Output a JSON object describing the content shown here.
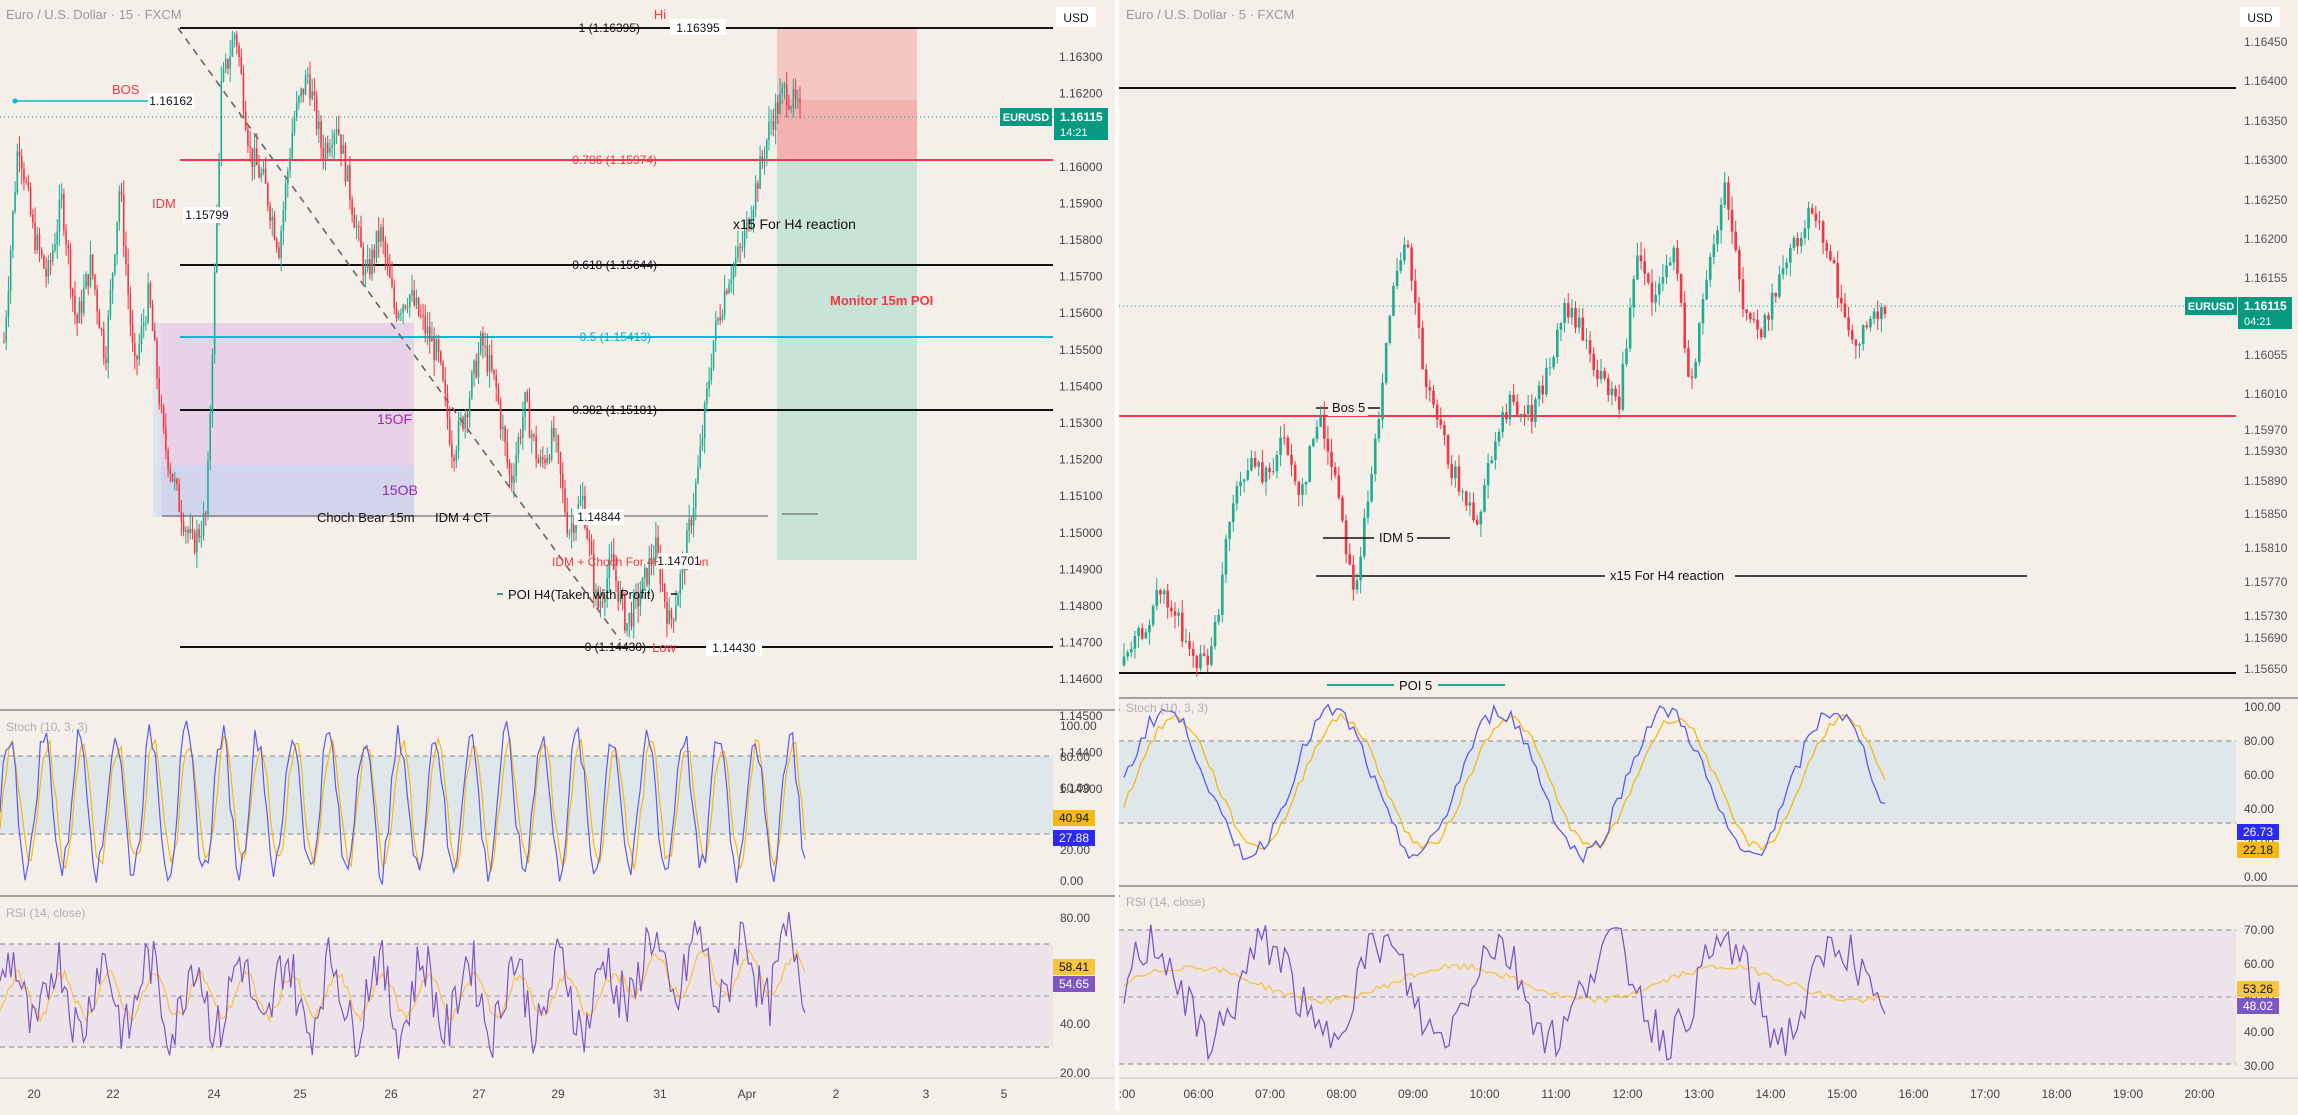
{
  "colors": {
    "bg": "#f4efe8",
    "up": "#22ab94",
    "down": "#f23645",
    "fib_red": "#f23645",
    "fib_blue": "#00bcd4",
    "ob_purple": "#e1bee7",
    "ob_blue": "#c5cae9",
    "stoch_k": "#5b5bf0",
    "stoch_d": "#f5b914",
    "rsi": "#7e57c2",
    "rsi_ma": "#f5c542",
    "price_tag": "#089981"
  },
  "left": {
    "title": "Euro / U.S. Dollar · 15 · FXCM",
    "currency": "USD",
    "price_axis": [
      "1.16300",
      "1.16200",
      "1.16100",
      "1.16000",
      "1.15900",
      "1.15800",
      "1.15700",
      "1.15600",
      "1.15500",
      "1.15400",
      "1.15300",
      "1.15200",
      "1.15100",
      "1.15000",
      "1.14900",
      "1.14800",
      "1.14700",
      "1.14600",
      "1.14500",
      "1.14400",
      "1.14300"
    ],
    "symbol_tag": "EURUSD",
    "price_tag": "1.16115",
    "countdown": "14:21",
    "x_labels": [
      "20",
      "22",
      "24",
      "25",
      "26",
      "27",
      "29",
      "31",
      "Apr",
      "2",
      "3",
      "5"
    ],
    "fib": [
      {
        "label": "1 (1.16395)",
        "value": 1.16395
      },
      {
        "label": "0.786 (1.15974)",
        "value": 1.15974
      },
      {
        "label": "0.618 (1.15644)",
        "value": 1.15644
      },
      {
        "label": "0.5 (1.15413)",
        "value": 1.15413
      },
      {
        "label": "0.382 (1.15181)",
        "value": 1.15181
      },
      {
        "label": "0 (1.14430)",
        "value": 1.1443
      }
    ],
    "annotations": {
      "hi": "Hi",
      "hi_price": "1.16395",
      "low": "Low",
      "low_price": "1.14430",
      "bos": "BOS",
      "bos_price": "1.16162",
      "idm": "IDM",
      "idm_price": "1.15799",
      "fifteen_of": "15OF",
      "fifteen_ob": "15OB",
      "choch_bear": "Choch Bear 15m",
      "idm_4ct": "IDM 4 CT",
      "idm_4ct_price": "1.14844",
      "idm_choch_4h": "IDM + Choch For 4H reaction",
      "idm_choch_price": "1.14701",
      "poi_h4": "POI H4(Taken with Profit)",
      "x15": "x15 For H4 reaction",
      "monitor": "Monitor 15m POI"
    },
    "stoch": {
      "label": "Stoch (10, 3, 3)",
      "axis": [
        "100.00",
        "80.00",
        "60.00",
        "40.00",
        "20.00",
        "0.00"
      ],
      "k_value": "40.94",
      "d_value": "27.88"
    },
    "rsi": {
      "label": "RSI (14, close)",
      "axis": [
        "80.00",
        "60.00",
        "40.00",
        "20.00"
      ],
      "value1": "58.41",
      "value2": "54.65"
    }
  },
  "right": {
    "title": "Euro / U.S. Dollar · 5 · FXCM",
    "currency": "USD",
    "price_axis": [
      "1.16450",
      "1.16400",
      "1.16350",
      "1.16300",
      "1.16250",
      "1.16200",
      "1.16155",
      "1.16105",
      "1.16055",
      "1.16010",
      "1.15970",
      "1.15930",
      "1.15890",
      "1.15850",
      "1.15810",
      "1.15770",
      "1.15730",
      "1.15690",
      "1.15650"
    ],
    "symbol_tag": "EURUSD",
    "price_tag": "1.16115",
    "countdown": "04:21",
    "x_labels": [
      ":00",
      "06:00",
      "07:00",
      "08:00",
      "09:00",
      "10:00",
      "11:00",
      "12:00",
      "13:00",
      "14:00",
      "15:00",
      "16:00",
      "17:00",
      "18:00",
      "19:00",
      "20:00"
    ],
    "annotations": {
      "bos5": "Bos 5",
      "idm5": "IDM 5",
      "x15": "x15 For H4 reaction",
      "poi5": "POI 5"
    },
    "stoch": {
      "label": "Stoch (10, 3, 3)",
      "axis": [
        "100.00",
        "80.00",
        "60.00",
        "40.00",
        "20.00",
        "0.00"
      ],
      "k_value": "26.73",
      "d_value": "22.18"
    },
    "rsi": {
      "label": "RSI (14, close)",
      "axis": [
        "70.00",
        "60.00",
        "50.00",
        "40.00",
        "30.00"
      ],
      "value1": "53.26",
      "value2": "48.02"
    }
  },
  "chart_data": [
    {
      "type": "candlestick",
      "title": "Euro / U.S. Dollar · 15 · FXCM",
      "ylim": [
        1.1425,
        1.165
      ],
      "fib_levels": [
        1.16395,
        1.15974,
        1.15644,
        1.15413,
        1.15181,
        1.1443
      ],
      "close": 1.16115,
      "x_ticks": [
        "20",
        "22",
        "24",
        "25",
        "26",
        "27",
        "29",
        "31",
        "Apr",
        "2",
        "3",
        "5"
      ]
    },
    {
      "type": "candlestick",
      "title": "Euro / U.S. Dollar · 5 · FXCM",
      "ylim": [
        1.1562,
        1.165
      ],
      "close": 1.16115,
      "x_ticks": [
        ":00",
        "06:00",
        "07:00",
        "08:00",
        "09:00",
        "10:00",
        "11:00",
        "12:00",
        "13:00",
        "14:00",
        "15:00",
        "16:00",
        "17:00",
        "18:00",
        "19:00",
        "20:00"
      ]
    }
  ]
}
